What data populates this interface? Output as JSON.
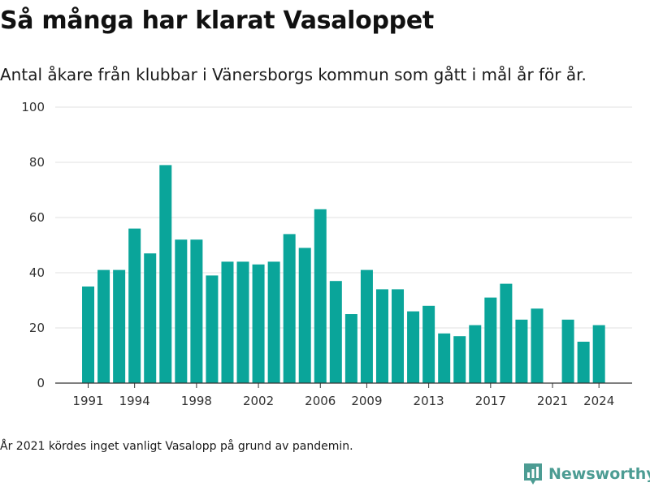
{
  "title": "Så många har klarat Vasaloppet",
  "subtitle": "Antal åkare från klubbar i Vänersborgs kommun som gått i mål år för år.",
  "footnote": "År 2021 kördes inget vanligt Vasalopp på grund av pandemin.",
  "brand": {
    "name": "Newsworthy",
    "icon": "newsworthy-logo-icon"
  },
  "colors": {
    "bar": "#0aa59a",
    "grid": "#e0e0e0",
    "axis": "#333333",
    "brand": "#4c9c93"
  },
  "chart_data": {
    "type": "bar",
    "title": "",
    "xlabel": "",
    "ylabel": "",
    "x": [
      1991,
      1992,
      1993,
      1994,
      1995,
      1996,
      1997,
      1998,
      1999,
      2000,
      2001,
      2002,
      2003,
      2004,
      2005,
      2006,
      2007,
      2008,
      2009,
      2010,
      2011,
      2012,
      2013,
      2014,
      2015,
      2016,
      2017,
      2018,
      2019,
      2020,
      2021,
      2022,
      2023,
      2024
    ],
    "values": [
      35,
      41,
      41,
      56,
      47,
      79,
      52,
      52,
      39,
      44,
      44,
      43,
      44,
      54,
      49,
      63,
      37,
      25,
      41,
      34,
      34,
      26,
      28,
      18,
      17,
      21,
      31,
      36,
      23,
      27,
      0,
      23,
      15,
      21
    ],
    "ylim": [
      0,
      100
    ],
    "yticks": [
      0,
      20,
      40,
      60,
      80,
      100
    ],
    "xticks": [
      1991,
      1994,
      1998,
      2002,
      2006,
      2009,
      2013,
      2017,
      2021,
      2024
    ],
    "grid": true
  }
}
